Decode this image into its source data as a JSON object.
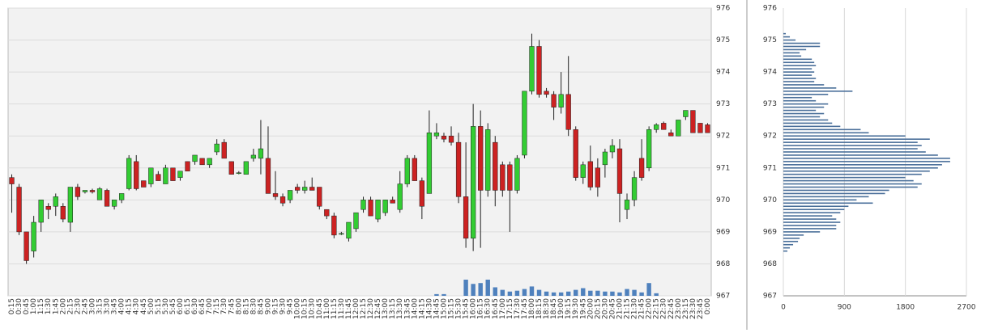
{
  "chart_data": [
    {
      "type": "candlestick",
      "categories": [
        "0:15",
        "0:30",
        "0:45",
        "1:00",
        "1:15",
        "1:30",
        "1:45",
        "2:00",
        "2:15",
        "2:30",
        "2:45",
        "3:00",
        "3:15",
        "3:30",
        "3:45",
        "4:00",
        "4:15",
        "4:30",
        "4:45",
        "5:00",
        "5:15",
        "5:30",
        "5:45",
        "6:00",
        "6:15",
        "6:30",
        "6:45",
        "7:00",
        "7:15",
        "7:30",
        "7:45",
        "8:00",
        "8:15",
        "8:30",
        "8:45",
        "9:00",
        "9:15",
        "9:30",
        "9:45",
        "10:00",
        "10:15",
        "10:30",
        "10:45",
        "11:00",
        "11:15",
        "11:30",
        "11:45",
        "12:00",
        "12:15",
        "12:30",
        "12:45",
        "13:00",
        "13:15",
        "13:30",
        "13:45",
        "14:00",
        "14:15",
        "14:30",
        "14:45",
        "15:00",
        "15:15",
        "15:30",
        "15:45",
        "16:00",
        "16:15",
        "16:30",
        "16:45",
        "17:00",
        "17:15",
        "17:30",
        "17:45",
        "18:00",
        "18:15",
        "18:30",
        "18:45",
        "19:00",
        "19:15",
        "19:30",
        "19:45",
        "20:00",
        "20:15",
        "20:30",
        "20:45",
        "21:00",
        "21:15",
        "21:30",
        "21:45",
        "22:00",
        "22:15",
        "22:30",
        "22:45",
        "23:00",
        "23:15",
        "23:30",
        "23:45",
        "0:00"
      ],
      "open": [
        970.7,
        970.4,
        969.0,
        968.4,
        969.3,
        969.8,
        969.8,
        969.8,
        969.3,
        970.4,
        970.25,
        970.3,
        970.0,
        970.3,
        969.8,
        970.0,
        970.35,
        971.2,
        970.6,
        970.5,
        970.8,
        970.5,
        971.0,
        970.7,
        971.2,
        971.2,
        971.3,
        971.1,
        971.5,
        971.8,
        971.2,
        970.85,
        970.8,
        971.3,
        971.3,
        971.3,
        970.2,
        970.1,
        970.0,
        970.4,
        970.3,
        970.4,
        970.4,
        969.7,
        969.5,
        968.95,
        968.8,
        969.1,
        969.7,
        970.0,
        969.4,
        969.6,
        970.0,
        969.7,
        970.5,
        971.3,
        970.6,
        970.2,
        972.0,
        972.0,
        972.0,
        971.8,
        970.1,
        968.8,
        972.3,
        970.3,
        971.8,
        971.1,
        971.1,
        970.3,
        971.4,
        973.4,
        974.8,
        973.4,
        973.3,
        972.9,
        973.3,
        972.2,
        970.7,
        971.2,
        971.0,
        971.1,
        971.5,
        971.6,
        969.7,
        970.0,
        971.3,
        971.0,
        972.2,
        972.4,
        972.1,
        972.0,
        972.6,
        972.8,
        972.4,
        972.35
      ],
      "high": [
        970.8,
        970.5,
        969.0,
        969.5,
        970.0,
        969.9,
        970.2,
        969.9,
        970.4,
        970.5,
        970.3,
        970.35,
        970.4,
        970.35,
        970.0,
        970.2,
        971.4,
        971.4,
        970.6,
        971.0,
        970.9,
        971.1,
        971.0,
        970.9,
        971.2,
        971.4,
        971.3,
        971.3,
        971.9,
        971.9,
        971.2,
        970.9,
        971.2,
        971.6,
        972.5,
        972.3,
        970.9,
        970.2,
        970.3,
        970.5,
        970.6,
        970.7,
        970.4,
        969.7,
        969.6,
        969.0,
        969.3,
        969.6,
        970.1,
        970.1,
        970.0,
        970.0,
        970.1,
        970.9,
        971.4,
        971.4,
        970.7,
        972.8,
        972.4,
        972.1,
        972.3,
        972.1,
        971.8,
        973.0,
        972.8,
        972.4,
        972.0,
        971.2,
        971.2,
        971.4,
        973.4,
        975.2,
        975.0,
        973.5,
        973.4,
        974.0,
        974.5,
        972.3,
        971.2,
        971.7,
        971.3,
        971.6,
        971.9,
        971.9,
        970.2,
        970.9,
        971.9,
        972.3,
        972.4,
        972.45,
        972.2,
        972.5,
        972.8,
        972.8,
        972.4,
        972.4
      ],
      "low": [
        969.6,
        968.9,
        968.0,
        968.2,
        969.0,
        969.4,
        969.5,
        969.3,
        969.0,
        970.0,
        970.2,
        970.2,
        970.0,
        969.8,
        969.7,
        969.9,
        970.3,
        970.3,
        970.4,
        970.4,
        970.6,
        970.5,
        970.6,
        970.6,
        970.9,
        971.1,
        971.1,
        971.0,
        971.4,
        971.3,
        970.8,
        970.8,
        970.8,
        971.2,
        970.8,
        970.2,
        970.0,
        969.8,
        969.9,
        970.2,
        970.2,
        970.3,
        969.7,
        969.4,
        968.8,
        968.9,
        968.7,
        969.0,
        969.6,
        969.5,
        969.3,
        969.5,
        969.9,
        969.6,
        970.4,
        970.6,
        969.4,
        970.2,
        971.9,
        971.8,
        971.7,
        969.9,
        968.5,
        968.4,
        968.5,
        970.1,
        969.8,
        970.1,
        969.0,
        970.2,
        971.3,
        973.3,
        973.2,
        973.2,
        972.5,
        972.7,
        972.0,
        970.6,
        970.5,
        970.3,
        970.1,
        970.7,
        971.3,
        969.3,
        969.4,
        969.8,
        970.6,
        970.9,
        972.1,
        972.2,
        972.0,
        972.0,
        972.5,
        972.1,
        972.1,
        972.1
      ],
      "close": [
        970.5,
        969.0,
        968.1,
        969.3,
        970.0,
        969.7,
        970.1,
        969.4,
        970.4,
        970.1,
        970.3,
        970.25,
        970.35,
        969.8,
        970.0,
        970.2,
        971.3,
        970.35,
        970.4,
        971.0,
        970.6,
        971.0,
        970.6,
        970.9,
        970.9,
        971.4,
        971.1,
        971.3,
        971.75,
        971.3,
        970.8,
        970.85,
        971.2,
        971.4,
        971.6,
        970.2,
        970.1,
        969.9,
        970.3,
        970.3,
        970.4,
        970.3,
        969.8,
        969.5,
        968.9,
        968.95,
        969.3,
        969.6,
        970.0,
        969.5,
        970.0,
        970.0,
        969.9,
        970.5,
        971.3,
        970.6,
        969.8,
        972.1,
        972.1,
        971.9,
        971.8,
        970.1,
        968.8,
        972.3,
        970.3,
        972.2,
        970.3,
        970.3,
        970.3,
        971.3,
        973.4,
        974.8,
        973.3,
        973.3,
        972.9,
        973.3,
        972.2,
        970.7,
        971.1,
        970.4,
        970.4,
        971.5,
        971.7,
        970.2,
        970.0,
        970.7,
        970.7,
        972.2,
        972.35,
        972.2,
        972.0,
        972.5,
        972.8,
        972.1,
        972.1,
        972.1
      ],
      "volume": [
        0,
        0,
        0,
        0,
        0,
        0,
        0,
        0,
        0,
        0,
        0,
        0,
        0,
        0,
        0,
        0,
        0,
        0,
        0,
        0,
        0,
        0,
        0,
        0,
        0,
        0,
        0,
        0,
        0,
        0,
        0,
        0,
        0,
        0,
        0,
        0,
        0,
        0,
        0,
        0,
        0,
        0,
        0,
        0,
        0,
        0,
        0,
        0,
        0,
        0,
        0,
        0,
        0,
        0,
        0,
        0,
        0,
        0,
        2,
        2,
        0,
        0,
        19,
        14,
        15,
        19,
        10,
        7,
        5,
        6,
        8,
        11,
        7,
        5,
        4,
        4,
        5,
        7,
        9,
        6,
        6,
        5,
        5,
        4,
        8,
        7,
        4,
        15,
        3,
        0,
        0,
        0,
        0,
        0,
        0,
        0
      ],
      "up_color": "#33cc33",
      "down_color": "#cc2222",
      "volume_color": "#4f81bd",
      "ylim": [
        967,
        976
      ],
      "yticks": [
        967,
        968,
        969,
        970,
        971,
        972,
        973,
        974,
        975,
        976
      ],
      "grid": true
    },
    {
      "type": "hbar",
      "categories": [
        968.4,
        968.5,
        968.6,
        968.7,
        968.8,
        968.9,
        969.0,
        969.1,
        969.2,
        969.3,
        969.4,
        969.5,
        969.6,
        969.7,
        969.8,
        969.9,
        970.0,
        970.1,
        970.2,
        970.3,
        970.4,
        970.5,
        970.6,
        970.7,
        970.8,
        970.9,
        971.0,
        971.1,
        971.2,
        971.3,
        971.4,
        971.5,
        971.6,
        971.7,
        971.8,
        971.9,
        972.0,
        972.1,
        972.2,
        972.3,
        972.4,
        972.5,
        972.6,
        972.7,
        972.8,
        972.9,
        973.0,
        973.1,
        973.2,
        973.3,
        973.4,
        973.5,
        973.6,
        973.7,
        973.8,
        973.9,
        974.0,
        974.1,
        974.2,
        974.3,
        974.4,
        974.5,
        974.6,
        974.7,
        974.8,
        974.9,
        975.0,
        975.1,
        975.2
      ],
      "values": [
        60,
        96,
        144,
        216,
        240,
        300,
        540,
        780,
        780,
        840,
        780,
        720,
        840,
        900,
        960,
        1320,
        1080,
        1260,
        1500,
        1560,
        1980,
        2040,
        1920,
        1800,
        2040,
        2160,
        2280,
        2340,
        2460,
        2460,
        2280,
        2100,
        1980,
        2040,
        1980,
        2160,
        1800,
        1260,
        1140,
        840,
        720,
        660,
        540,
        600,
        480,
        600,
        660,
        480,
        420,
        660,
        1020,
        780,
        600,
        456,
        480,
        420,
        456,
        420,
        480,
        456,
        420,
        264,
        240,
        336,
        540,
        540,
        180,
        96,
        36
      ],
      "color": "#4a6f9a",
      "ylim": [
        967,
        976
      ],
      "yticks": [
        967,
        968,
        969,
        970,
        971,
        972,
        973,
        974,
        975,
        976
      ],
      "xlim": [
        0,
        2700
      ],
      "xticks": [
        0,
        900,
        1800,
        2700
      ],
      "grid": true
    }
  ]
}
